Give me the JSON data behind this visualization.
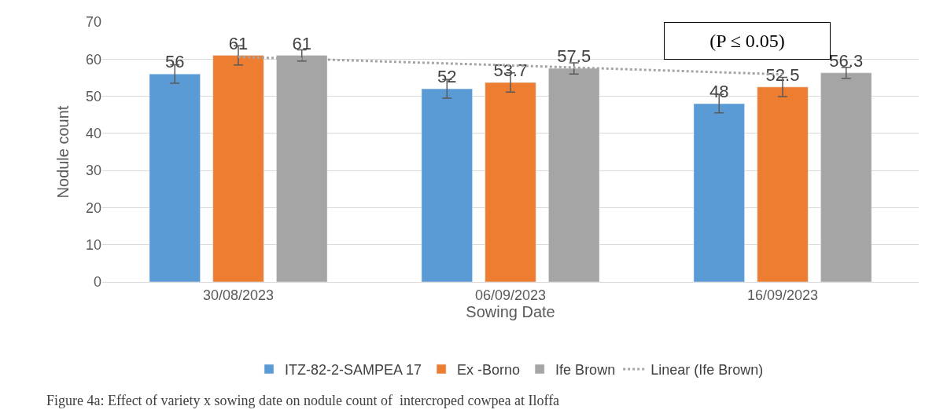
{
  "chart_data": {
    "type": "bar",
    "xlabel": "Sowing Date",
    "ylabel": "Nodule count",
    "categories": [
      "30/08/2023",
      "06/09/2023",
      "16/09/2023"
    ],
    "series": [
      {
        "name": "ITZ-82-2-SAMPEA 17",
        "color": "#5b9bd5",
        "values": [
          56,
          52,
          48
        ],
        "value_labels": [
          "56",
          "52",
          "48"
        ],
        "errors": [
          2.5,
          2.5,
          2.5
        ]
      },
      {
        "name": "Ex -Borno",
        "color": "#ed7d31",
        "values": [
          61,
          53.7,
          52.5
        ],
        "value_labels": [
          "61",
          "53.7",
          "52.5"
        ],
        "errors": [
          2.6,
          2.6,
          2.6
        ]
      },
      {
        "name": "Ife Brown",
        "color": "#a5a5a5",
        "values": [
          61,
          57.5,
          56.3
        ],
        "value_labels": [
          "61",
          "57.5",
          "56.3"
        ],
        "errors": [
          1.5,
          1.5,
          1.5
        ]
      },
      {
        "name": "Linear (Ife Brown)",
        "type": "line",
        "color": "#a5a5a5",
        "line_style": "dotted",
        "marker": "none",
        "values": [
          60.6,
          58.3,
          55.9
        ]
      }
    ],
    "ylim": [
      0,
      70
    ],
    "yticks": [
      0,
      10,
      20,
      30,
      40,
      50,
      60,
      70
    ],
    "grid": "y",
    "legend": "bottom",
    "annotations": [
      "(P ≤ 0.05)",
      "Figure 4a: Effect of variety x sowing date on nodule count of  intercroped cowpea at Iloffa"
    ]
  }
}
